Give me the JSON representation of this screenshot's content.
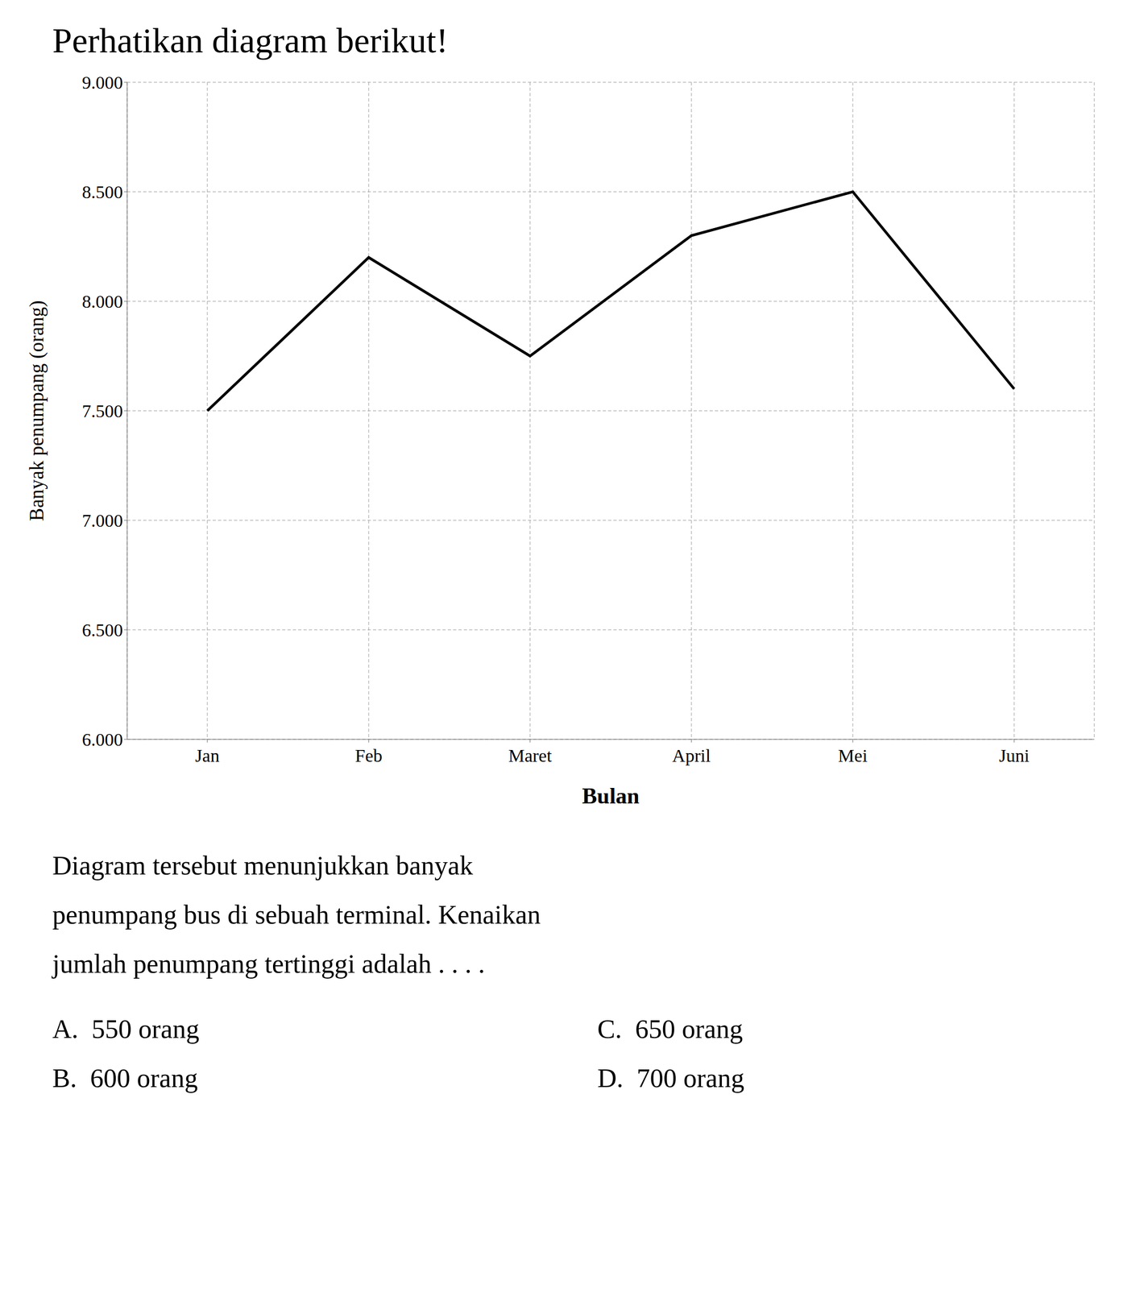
{
  "chart_data": {
    "type": "line",
    "title": "Perhatikan diagram berikut!",
    "categories": [
      "Jan",
      "Feb",
      "Maret",
      "April",
      "Mei",
      "Juni"
    ],
    "values": [
      7500,
      8200,
      7750,
      8300,
      8500,
      7600
    ],
    "color": "#000000",
    "xlabel": "Bulan",
    "ylabel": "Banyak penumpang (orang)",
    "ylim": [
      6000,
      9000
    ],
    "yticks": [
      {
        "value": 6000,
        "label": "6.000"
      },
      {
        "value": 6500,
        "label": "6.500"
      },
      {
        "value": 7000,
        "label": "7.000"
      },
      {
        "value": 7500,
        "label": "7.500"
      },
      {
        "value": 8000,
        "label": "8.000"
      },
      {
        "value": 8500,
        "label": "8.500"
      },
      {
        "value": 9000,
        "label": "9.000"
      }
    ],
    "grid": true,
    "annotations": [
      "Diagram tersebut menunjukkan banyak",
      "penumpang bus di sebuah terminal. Kenaikan",
      "jumlah penumpang tertinggi adalah . . . .",
      "A.  550 orang",
      "B.  600 orang",
      "C.  650 orang",
      "D.  700 orang"
    ]
  }
}
